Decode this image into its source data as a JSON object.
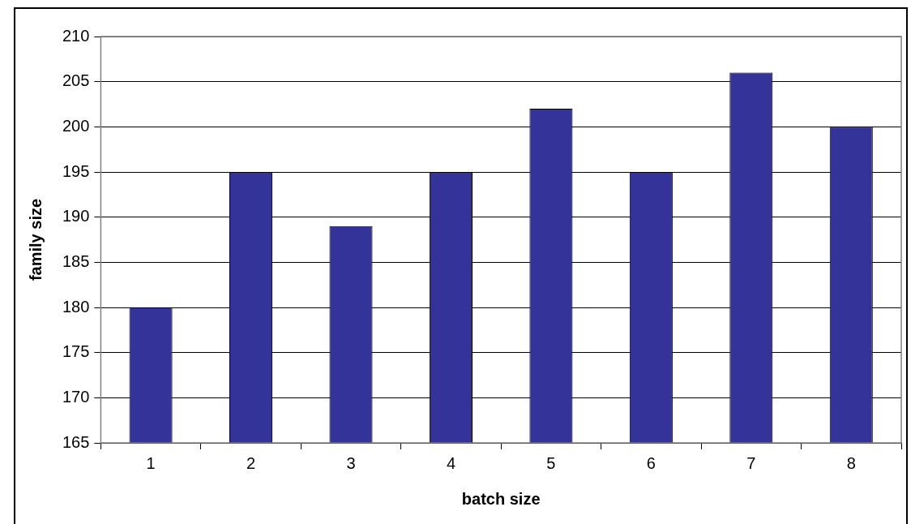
{
  "chart_data": {
    "type": "bar",
    "xlabel": "batch size",
    "ylabel": "family size",
    "categories": [
      "1",
      "2",
      "3",
      "4",
      "5",
      "6",
      "7",
      "8"
    ],
    "values": [
      180,
      195,
      189,
      195,
      202,
      195,
      206,
      200
    ],
    "color": "#333399",
    "ylim": [
      165,
      210
    ],
    "yticks": [
      165,
      170,
      175,
      180,
      185,
      190,
      195,
      200,
      205,
      210
    ],
    "grid": "y",
    "legend": false
  }
}
